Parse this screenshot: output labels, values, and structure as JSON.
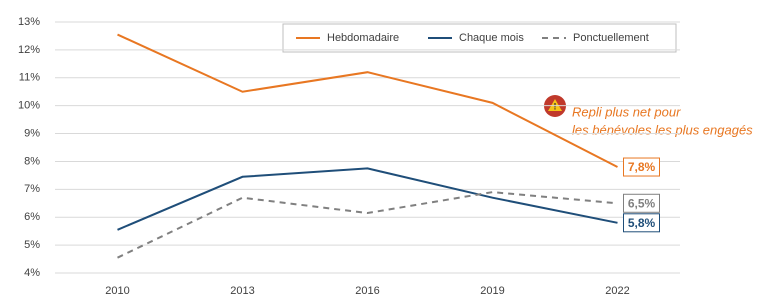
{
  "chart_data": {
    "type": "line",
    "categories": [
      "2010",
      "2013",
      "2016",
      "2019",
      "2022"
    ],
    "series": [
      {
        "name": "Hebdomadaire",
        "color": "#e87722",
        "dash": false,
        "values": [
          12.55,
          10.5,
          11.2,
          10.1,
          7.8
        ],
        "value_labels": [
          null,
          null,
          null,
          null,
          "7,8%"
        ]
      },
      {
        "name": "Chaque mois",
        "color": "#1f4e79",
        "dash": false,
        "values": [
          5.55,
          7.45,
          7.75,
          6.7,
          5.8
        ],
        "value_labels": [
          null,
          null,
          null,
          null,
          "5,8%"
        ]
      },
      {
        "name": "Ponctuellement",
        "color": "#808080",
        "dash": true,
        "values": [
          4.55,
          6.7,
          6.15,
          6.9,
          6.5
        ],
        "value_labels": [
          null,
          null,
          null,
          null,
          "6,5%"
        ]
      }
    ],
    "ylim": [
      4,
      13
    ],
    "yticks": [
      {
        "value": 4,
        "label": "4%"
      },
      {
        "value": 5,
        "label": "5%"
      },
      {
        "value": 6,
        "label": "6%"
      },
      {
        "value": 7,
        "label": "7%"
      },
      {
        "value": 8,
        "label": "8%"
      },
      {
        "value": 9,
        "label": "9%"
      },
      {
        "value": 10,
        "label": "10%"
      },
      {
        "value": 11,
        "label": "11%"
      },
      {
        "value": 12,
        "label": "12%"
      },
      {
        "value": 13,
        "label": "13%"
      }
    ],
    "grid": true,
    "annotation": [
      "Repli plus net pour",
      "les bénévoles les plus engagés"
    ]
  }
}
